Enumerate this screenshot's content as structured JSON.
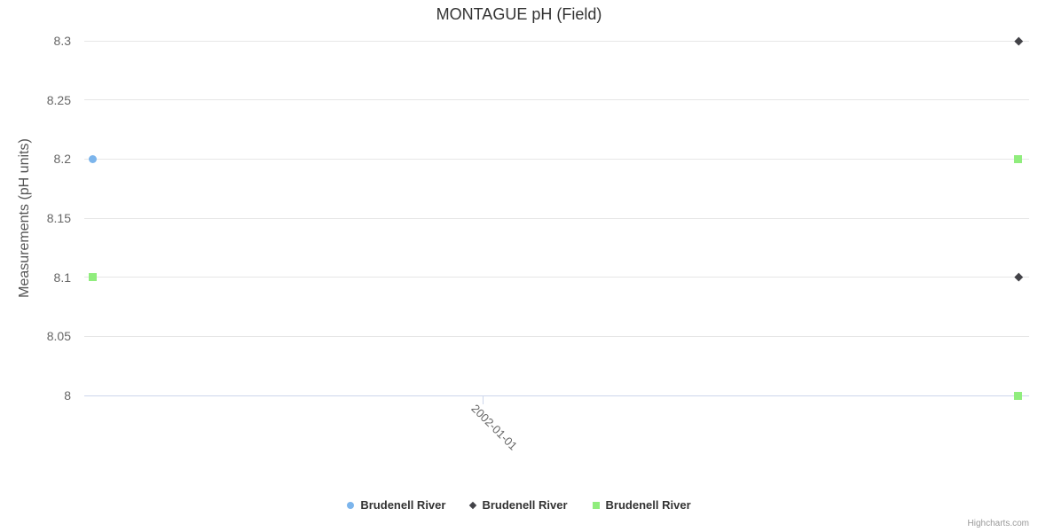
{
  "chart": {
    "title": "MONTAGUE pH (Field)",
    "credits": "Highcharts.com"
  },
  "chart_data": {
    "type": "scatter",
    "title": "MONTAGUE pH (Field)",
    "xlabel": "",
    "ylabel": "Measurements (pH units)",
    "ylim": [
      8,
      8.3
    ],
    "y_ticks": [
      8.3,
      8.25,
      8.2,
      8.15,
      8.1,
      8.05,
      8
    ],
    "y_tick_labels": [
      "8.3",
      "8.25",
      "8.2",
      "8.15",
      "8.1",
      "8.05",
      "8"
    ],
    "x_tick_labels": [
      "2002-01-01"
    ],
    "x_tick_fracs": [
      0.4225
    ],
    "grid": true,
    "legend_position": "bottom-center",
    "series": [
      {
        "name": "Brudenell River",
        "marker": "circle",
        "color": "#7cb5ec",
        "points": [
          {
            "x_frac": 0.0085,
            "y": 8.2
          }
        ]
      },
      {
        "name": "Brudenell River",
        "marker": "diamond",
        "color": "#434348",
        "points": [
          {
            "x_frac": 0.9887,
            "y": 8.3
          },
          {
            "x_frac": 0.9887,
            "y": 8.1
          }
        ]
      },
      {
        "name": "Brudenell River",
        "marker": "square",
        "color": "#90ed7d",
        "points": [
          {
            "x_frac": 0.0085,
            "y": 8.1
          },
          {
            "x_frac": 0.9887,
            "y": 8.2
          },
          {
            "x_frac": 0.9887,
            "y": 8.0
          }
        ]
      }
    ]
  },
  "colors": {
    "background": "#ffffff",
    "grid": "#e6e6e6",
    "axis_line": "#ccd6eb",
    "title_text": "#333333",
    "axis_title_text": "#555555",
    "tick_label_text": "#666666",
    "legend_text": "#333333",
    "credits_text": "#999999"
  }
}
